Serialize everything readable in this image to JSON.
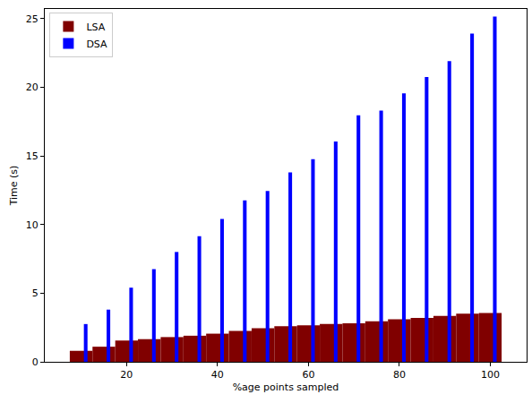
{
  "chart_data": {
    "type": "bar",
    "x_label": "%age points sampled",
    "y_label": "Time (s)",
    "series": [
      {
        "name": "LSA",
        "color": "#800000",
        "x": [
          10,
          15,
          20,
          25,
          30,
          35,
          40,
          45,
          50,
          55,
          60,
          65,
          70,
          75,
          80,
          85,
          90,
          95,
          100
        ],
        "values": [
          0.8,
          1.1,
          1.55,
          1.65,
          1.8,
          1.9,
          2.05,
          2.25,
          2.45,
          2.6,
          2.65,
          2.75,
          2.8,
          2.95,
          3.1,
          3.2,
          3.35,
          3.5,
          3.55
        ]
      },
      {
        "name": "DSA",
        "color": "#0000ff",
        "x": [
          11,
          16,
          21,
          26,
          31,
          36,
          41,
          46,
          51,
          56,
          61,
          66,
          71,
          76,
          81,
          86,
          91,
          96,
          101
        ],
        "values": [
          2.75,
          3.8,
          5.4,
          6.75,
          8.0,
          9.15,
          10.4,
          11.75,
          12.45,
          13.8,
          14.75,
          16.05,
          17.95,
          18.3,
          19.55,
          20.75,
          21.9,
          23.9,
          25.15
        ]
      }
    ],
    "xlim": [
      2,
      108
    ],
    "ylim": [
      0,
      25.7
    ],
    "xticks": [
      20,
      40,
      60,
      80,
      100
    ],
    "yticks": [
      0,
      5,
      10,
      15,
      20,
      25
    ],
    "legend": "top left",
    "grid": false
  }
}
